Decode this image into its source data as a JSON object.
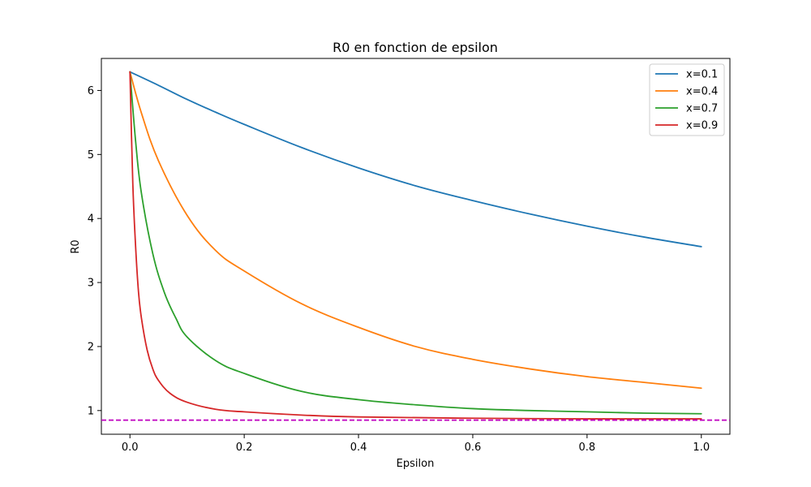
{
  "chart_data": {
    "type": "line",
    "title": "R0 en fonction de epsilon",
    "xlabel": "Epsilon",
    "ylabel": "R0",
    "xlim": [
      -0.05,
      1.05
    ],
    "ylim": [
      0.63,
      6.5
    ],
    "xticks": [
      0.0,
      0.2,
      0.4,
      0.6,
      0.8,
      1.0
    ],
    "xtick_labels": [
      "0.0",
      "0.2",
      "0.4",
      "0.6",
      "0.8",
      "1.0"
    ],
    "yticks": [
      1,
      2,
      3,
      4,
      5,
      6
    ],
    "ytick_labels": [
      "1",
      "2",
      "3",
      "4",
      "5",
      "6"
    ],
    "grid": false,
    "legend_position": "top-right",
    "reference_line": {
      "y": 0.85,
      "color": "#bf00bf",
      "style": "dashed"
    },
    "series": [
      {
        "name": "x=0.1",
        "color": "#1f77b4",
        "x": [
          0.0,
          0.05,
          0.1,
          0.15,
          0.2,
          0.3,
          0.4,
          0.5,
          0.6,
          0.7,
          0.8,
          0.9,
          1.0
        ],
        "y": [
          6.29,
          6.08,
          5.86,
          5.66,
          5.47,
          5.11,
          4.79,
          4.51,
          4.28,
          4.07,
          3.88,
          3.71,
          3.56
        ]
      },
      {
        "name": "x=0.4",
        "color": "#ff7f0e",
        "x": [
          0.0,
          0.02,
          0.05,
          0.1,
          0.15,
          0.2,
          0.3,
          0.4,
          0.5,
          0.6,
          0.7,
          0.8,
          0.9,
          1.0
        ],
        "y": [
          6.29,
          5.65,
          4.9,
          4.05,
          3.5,
          3.18,
          2.67,
          2.3,
          2.0,
          1.8,
          1.65,
          1.53,
          1.44,
          1.35
        ]
      },
      {
        "name": "x=0.7",
        "color": "#2ca02c",
        "x": [
          0.0,
          0.01,
          0.02,
          0.04,
          0.06,
          0.08,
          0.1,
          0.15,
          0.2,
          0.3,
          0.4,
          0.5,
          0.6,
          0.7,
          0.8,
          0.9,
          1.0
        ],
        "y": [
          6.29,
          5.2,
          4.4,
          3.45,
          2.85,
          2.45,
          2.15,
          1.78,
          1.58,
          1.3,
          1.17,
          1.09,
          1.03,
          1.0,
          0.98,
          0.96,
          0.95
        ]
      },
      {
        "name": "x=0.9",
        "color": "#d62728",
        "x": [
          0.0,
          0.005,
          0.01,
          0.015,
          0.02,
          0.03,
          0.04,
          0.05,
          0.07,
          0.1,
          0.15,
          0.2,
          0.3,
          0.4,
          0.6,
          0.8,
          1.0
        ],
        "y": [
          6.29,
          4.55,
          3.55,
          2.85,
          2.45,
          1.95,
          1.65,
          1.47,
          1.27,
          1.13,
          1.02,
          0.98,
          0.93,
          0.9,
          0.88,
          0.87,
          0.87
        ]
      }
    ]
  }
}
